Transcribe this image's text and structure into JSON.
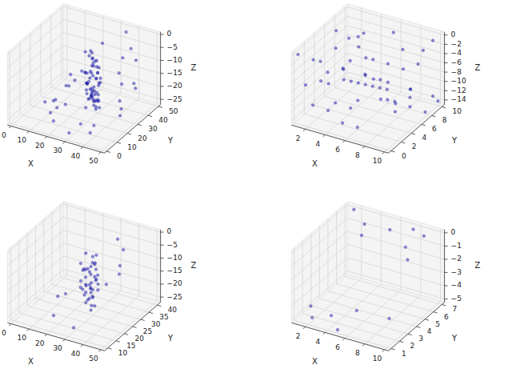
{
  "chart_data": [
    {
      "type": "scatter",
      "color": "#1f1fa8",
      "grid": true,
      "marker": "circle",
      "x_label": "X",
      "y_label": "Y",
      "z_label": "Z",
      "xlim": [
        -2,
        52
      ],
      "ylim": [
        -2,
        52
      ],
      "zlim": [
        -27,
        1
      ],
      "xticks": [
        0,
        10,
        20,
        30,
        40,
        50
      ],
      "yticks": [
        0,
        10,
        20,
        30,
        40,
        50
      ],
      "zticks": [
        0,
        {
          "value": -5,
          "label": "−5"
        },
        {
          "value": -10,
          "label": "−10"
        },
        {
          "value": -15,
          "label": "−15"
        },
        {
          "value": -20,
          "label": "−20"
        },
        {
          "value": -25,
          "label": "−25"
        }
      ],
      "x": [
        27,
        29,
        25,
        31,
        28,
        26,
        30,
        24,
        33,
        28,
        27,
        29,
        26,
        31,
        25,
        30,
        28,
        32,
        27,
        29,
        24,
        26,
        30,
        28,
        31,
        27,
        25,
        29,
        33,
        28,
        26,
        30,
        27,
        29,
        31,
        25,
        28,
        26,
        30,
        27,
        32,
        29,
        24,
        28,
        26,
        31,
        27,
        30,
        28,
        25,
        29,
        27,
        31,
        26,
        28,
        30,
        24,
        29,
        27,
        32,
        12,
        45,
        38,
        18,
        8,
        42,
        35,
        15,
        48,
        20,
        40,
        10,
        36,
        22,
        44,
        5,
        33,
        17,
        47,
        14,
        39,
        21,
        30,
        46,
        11,
        37,
        19,
        43,
        16,
        34
      ],
      "y": [
        28,
        26,
        30,
        27,
        29,
        31,
        25,
        28,
        27,
        33,
        24,
        30,
        26,
        29,
        28,
        32,
        27,
        25,
        31,
        28,
        29,
        26,
        30,
        24,
        28,
        27,
        32,
        29,
        26,
        30,
        25,
        28,
        31,
        27,
        29,
        26,
        33,
        28,
        24,
        30,
        27,
        31,
        28,
        26,
        29,
        25,
        30,
        27,
        32,
        28,
        24,
        29,
        26,
        31,
        27,
        28,
        30,
        25,
        29,
        27,
        20,
        40,
        12,
        35,
        25,
        30,
        45,
        10,
        20,
        42,
        5,
        38,
        15,
        48,
        28,
        22,
        8,
        30,
        35,
        18,
        46,
        14,
        2,
        25,
        32,
        38,
        6,
        44,
        26,
        50
      ],
      "z": [
        -3,
        -5,
        -6,
        -8,
        -9,
        -10,
        -11,
        -12,
        -12,
        -13,
        -14,
        -14,
        -15,
        -15,
        -16,
        -16,
        -17,
        -17,
        -18,
        -18,
        -19,
        -19,
        -20,
        -20,
        -21,
        -21,
        -22,
        -22,
        -23,
        -23,
        -24,
        -24,
        -25,
        -7,
        -9,
        -11,
        -13,
        -15,
        -17,
        -19,
        -21,
        -23,
        -4,
        -10,
        -14,
        -18,
        -22,
        -6,
        -8,
        -12,
        -16,
        -20,
        -24,
        -5,
        -11,
        -13,
        -17,
        -19,
        -21,
        -15,
        -22,
        -18,
        -24,
        -15,
        -25,
        -20,
        -10,
        -23,
        -21,
        -12,
        -24,
        -19,
        -16,
        -8,
        -22,
        -25,
        -23,
        -17,
        -14,
        -24,
        -6,
        -20,
        -25,
        -11,
        -21,
        -13,
        -24,
        -9,
        -18,
        -2
      ]
    },
    {
      "type": "scatter",
      "color": "#1f1fa8",
      "grid": true,
      "marker": "circle",
      "x_label": "X",
      "y_label": "Y",
      "z_label": "Z",
      "xlim": [
        0.6,
        10.4
      ],
      "ylim": [
        -0.5,
        10.5
      ],
      "zlim": [
        -15,
        0.7
      ],
      "xticks": [
        2,
        4,
        6,
        8,
        10
      ],
      "yticks": [
        0,
        2,
        4,
        6,
        8,
        10
      ],
      "zticks": [
        0,
        {
          "value": -2,
          "label": "−2"
        },
        {
          "value": -4,
          "label": "−4"
        },
        {
          "value": -6,
          "label": "−6"
        },
        {
          "value": -8,
          "label": "−8"
        },
        {
          "value": -10,
          "label": "−10"
        },
        {
          "value": -12,
          "label": "−12"
        },
        {
          "value": -14,
          "label": "−14"
        }
      ],
      "x": [
        1,
        2.5,
        4,
        5.5,
        7,
        8.5,
        10,
        1,
        2.5,
        4,
        5.5,
        7,
        8.5,
        10,
        1,
        2.5,
        4,
        5.5,
        7,
        8.5,
        10,
        1,
        2.5,
        4,
        5.5,
        7,
        8.5,
        10,
        1,
        2.5,
        4,
        5.5,
        7,
        8.5,
        10,
        1,
        2.5,
        4,
        5.5,
        7,
        8.5,
        10,
        1,
        2.5,
        4,
        5.5,
        7,
        8.5,
        10,
        1,
        2.5,
        4,
        5.5,
        7,
        8.5,
        10
      ],
      "y": [
        0,
        1.5,
        3,
        4.5,
        6,
        7.5,
        9,
        9,
        7.5,
        6,
        4.5,
        3,
        1.5,
        0,
        3,
        6,
        9,
        1.5,
        4.5,
        7.5,
        10,
        10,
        4.5,
        1.5,
        7.5,
        6,
        3,
        9,
        6,
        9,
        0,
        3,
        7.5,
        10,
        4.5,
        1.5,
        3,
        7.5,
        10,
        0,
        6,
        4.5,
        7.5,
        0,
        4.5,
        6,
        9,
        4.5,
        1.5,
        4.5,
        10,
        6,
        0,
        1.5,
        9,
        7.5
      ],
      "z": [
        0,
        -2,
        -4,
        -6,
        -8,
        -10,
        -12,
        -14,
        -12,
        -10,
        -8,
        -6,
        -4,
        -2,
        -4,
        -8,
        -12,
        0,
        -6,
        -10,
        -14,
        -6,
        -2,
        -10,
        -14,
        -4,
        -8,
        0,
        -12,
        -6,
        -2,
        -10,
        -14,
        -4,
        -8,
        -8,
        -14,
        -6,
        -2,
        -12,
        0,
        -10,
        -2,
        -10,
        -14,
        -4,
        -8,
        -12,
        -6,
        -10,
        -4,
        0,
        -12,
        -2,
        -6,
        -14
      ]
    },
    {
      "type": "scatter",
      "color": "#1f1fa8",
      "grid": true,
      "marker": "circle",
      "x_label": "X",
      "y_label": "Y",
      "z_label": "Z",
      "xlim": [
        -2,
        52
      ],
      "ylim": [
        8,
        42
      ],
      "zlim": [
        -27,
        1
      ],
      "xticks": [
        0,
        10,
        20,
        30,
        40,
        50
      ],
      "yticks": [
        10,
        15,
        20,
        25,
        30,
        35,
        40
      ],
      "zticks": [
        0,
        {
          "value": -5,
          "label": "−5"
        },
        {
          "value": -10,
          "label": "−10"
        },
        {
          "value": -15,
          "label": "−15"
        },
        {
          "value": -20,
          "label": "−20"
        },
        {
          "value": -25,
          "label": "−25"
        }
      ],
      "x": [
        26,
        28,
        25,
        30,
        27,
        29,
        24,
        31,
        28,
        26,
        27,
        30,
        25,
        29,
        28,
        26,
        31,
        27,
        24,
        29,
        28,
        30,
        26,
        27,
        25,
        28,
        29,
        31,
        27,
        26,
        30,
        28,
        25,
        29,
        27,
        26,
        28,
        30,
        27,
        29,
        15,
        40,
        20,
        35,
        45,
        12,
        38,
        22,
        33,
        18,
        42,
        30
      ],
      "y": [
        25,
        27,
        23,
        26,
        28,
        24,
        26,
        25,
        29,
        22,
        27,
        24,
        26,
        28,
        23,
        25,
        27,
        30,
        24,
        26,
        22,
        28,
        25,
        27,
        29,
        24,
        26,
        23,
        28,
        25,
        27,
        24,
        26,
        29,
        22,
        28,
        25,
        26,
        27,
        24,
        20,
        30,
        12,
        38,
        25,
        28,
        15,
        35,
        10,
        32,
        20,
        40
      ],
      "z": [
        -4,
        -6,
        -7,
        -8,
        -9,
        -10,
        -11,
        -12,
        -12,
        -13,
        -13,
        -14,
        -14,
        -15,
        -15,
        -16,
        -16,
        -17,
        -17,
        -18,
        -18,
        -19,
        -19,
        -20,
        -20,
        -21,
        -21,
        -22,
        -22,
        -23,
        -5,
        -9,
        -11,
        -14,
        -16,
        -19,
        -21,
        -24,
        -10,
        -15,
        -20,
        -12,
        -22,
        -8,
        -5,
        -24,
        -18,
        -14,
        -23,
        -16,
        -10,
        -6
      ]
    },
    {
      "type": "scatter",
      "color": "#1f1fa8",
      "grid": true,
      "marker": "circle",
      "x_label": "X",
      "y_label": "Y",
      "z_label": "Z",
      "xlim": [
        0.6,
        10.4
      ],
      "ylim": [
        0.7,
        7.3
      ],
      "zlim": [
        -5.25,
        0.25
      ],
      "xticks": [
        2,
        4,
        6,
        8,
        10
      ],
      "yticks": [
        1,
        2,
        3,
        4,
        5,
        6,
        7
      ],
      "zticks": [
        0,
        {
          "value": -1,
          "label": "−1"
        },
        {
          "value": -2,
          "label": "−2"
        },
        {
          "value": -3,
          "label": "−3"
        },
        {
          "value": -4,
          "label": "−4"
        },
        {
          "value": -5,
          "label": "−5"
        }
      ],
      "x": [
        1.5,
        3,
        4,
        6,
        7.5,
        8,
        9,
        9.5,
        2,
        3.5,
        5,
        8.5,
        1,
        6.5
      ],
      "y": [
        7,
        6.5,
        5,
        6,
        7,
        5.5,
        6.5,
        4,
        1.5,
        2,
        1,
        3,
        2.5,
        1.5
      ],
      "z": [
        0,
        -0.5,
        -0.3,
        0,
        -0.2,
        -0.6,
        -0.1,
        -0.4,
        -5,
        -4.8,
        -5,
        -4.5,
        -4.9,
        -3.5
      ]
    }
  ]
}
